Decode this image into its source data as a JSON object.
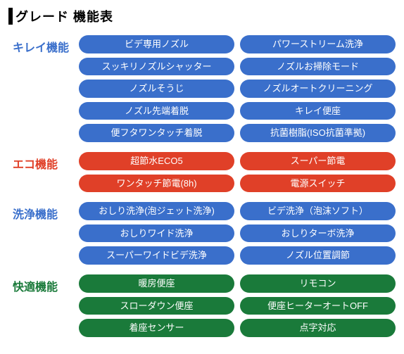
{
  "title": "グレード 機能表",
  "sections": [
    {
      "label": "キレイ機能",
      "label_color": "#3a6fcb",
      "pill_color": "#3a6fcb",
      "items": [
        "ビデ専用ノズル",
        "パワーストリーム洗浄",
        "スッキリノズルシャッター",
        "ノズルお掃除モード",
        "ノズルそうじ",
        "ノズルオートクリーニング",
        "ノズル先端着脱",
        "キレイ便座",
        "便フタワンタッチ着脱",
        "抗菌樹脂(ISO抗菌準拠)"
      ]
    },
    {
      "label": "エコ機能",
      "label_color": "#e04028",
      "pill_color": "#e04028",
      "items": [
        "超節水ECO5",
        "スーパー節電",
        "ワンタッチ節電(8h)",
        "電源スイッチ"
      ]
    },
    {
      "label": "洗浄機能",
      "label_color": "#3a6fcb",
      "pill_color": "#3a6fcb",
      "items": [
        "おしり洗浄(泡ジェット洗浄)",
        "ビデ洗浄（泡沫ソフト）",
        "おしりワイド洗浄",
        "おしりターボ洗浄",
        "スーパーワイドビデ洗浄",
        "ノズル位置調節"
      ]
    },
    {
      "label": "快適機能",
      "label_color": "#1a7a3a",
      "pill_color": "#1a7a3a",
      "items": [
        "暖房便座",
        "リモコン",
        "スローダウン便座",
        "便座ヒーターオートOFF",
        "着座センサー",
        "点字対応"
      ]
    }
  ]
}
